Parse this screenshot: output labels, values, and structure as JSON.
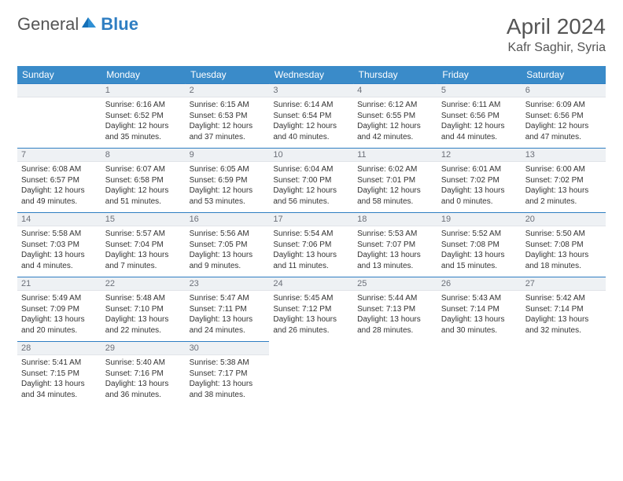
{
  "logo": {
    "text1": "General",
    "text2": "Blue"
  },
  "title": "April 2024",
  "location": "Kafr Saghir, Syria",
  "headers": [
    "Sunday",
    "Monday",
    "Tuesday",
    "Wednesday",
    "Thursday",
    "Friday",
    "Saturday"
  ],
  "colors": {
    "header_bg": "#3a8bc9",
    "header_text": "#ffffff",
    "daynum_bg": "#eef1f4",
    "border": "#2f7ec2",
    "logo_blue": "#2f7ec2"
  },
  "weeks": [
    [
      {
        "n": "",
        "sr": "",
        "ss": "",
        "dl": ""
      },
      {
        "n": "1",
        "sr": "Sunrise: 6:16 AM",
        "ss": "Sunset: 6:52 PM",
        "dl": "Daylight: 12 hours and 35 minutes."
      },
      {
        "n": "2",
        "sr": "Sunrise: 6:15 AM",
        "ss": "Sunset: 6:53 PM",
        "dl": "Daylight: 12 hours and 37 minutes."
      },
      {
        "n": "3",
        "sr": "Sunrise: 6:14 AM",
        "ss": "Sunset: 6:54 PM",
        "dl": "Daylight: 12 hours and 40 minutes."
      },
      {
        "n": "4",
        "sr": "Sunrise: 6:12 AM",
        "ss": "Sunset: 6:55 PM",
        "dl": "Daylight: 12 hours and 42 minutes."
      },
      {
        "n": "5",
        "sr": "Sunrise: 6:11 AM",
        "ss": "Sunset: 6:56 PM",
        "dl": "Daylight: 12 hours and 44 minutes."
      },
      {
        "n": "6",
        "sr": "Sunrise: 6:09 AM",
        "ss": "Sunset: 6:56 PM",
        "dl": "Daylight: 12 hours and 47 minutes."
      }
    ],
    [
      {
        "n": "7",
        "sr": "Sunrise: 6:08 AM",
        "ss": "Sunset: 6:57 PM",
        "dl": "Daylight: 12 hours and 49 minutes."
      },
      {
        "n": "8",
        "sr": "Sunrise: 6:07 AM",
        "ss": "Sunset: 6:58 PM",
        "dl": "Daylight: 12 hours and 51 minutes."
      },
      {
        "n": "9",
        "sr": "Sunrise: 6:05 AM",
        "ss": "Sunset: 6:59 PM",
        "dl": "Daylight: 12 hours and 53 minutes."
      },
      {
        "n": "10",
        "sr": "Sunrise: 6:04 AM",
        "ss": "Sunset: 7:00 PM",
        "dl": "Daylight: 12 hours and 56 minutes."
      },
      {
        "n": "11",
        "sr": "Sunrise: 6:02 AM",
        "ss": "Sunset: 7:01 PM",
        "dl": "Daylight: 12 hours and 58 minutes."
      },
      {
        "n": "12",
        "sr": "Sunrise: 6:01 AM",
        "ss": "Sunset: 7:02 PM",
        "dl": "Daylight: 13 hours and 0 minutes."
      },
      {
        "n": "13",
        "sr": "Sunrise: 6:00 AM",
        "ss": "Sunset: 7:02 PM",
        "dl": "Daylight: 13 hours and 2 minutes."
      }
    ],
    [
      {
        "n": "14",
        "sr": "Sunrise: 5:58 AM",
        "ss": "Sunset: 7:03 PM",
        "dl": "Daylight: 13 hours and 4 minutes."
      },
      {
        "n": "15",
        "sr": "Sunrise: 5:57 AM",
        "ss": "Sunset: 7:04 PM",
        "dl": "Daylight: 13 hours and 7 minutes."
      },
      {
        "n": "16",
        "sr": "Sunrise: 5:56 AM",
        "ss": "Sunset: 7:05 PM",
        "dl": "Daylight: 13 hours and 9 minutes."
      },
      {
        "n": "17",
        "sr": "Sunrise: 5:54 AM",
        "ss": "Sunset: 7:06 PM",
        "dl": "Daylight: 13 hours and 11 minutes."
      },
      {
        "n": "18",
        "sr": "Sunrise: 5:53 AM",
        "ss": "Sunset: 7:07 PM",
        "dl": "Daylight: 13 hours and 13 minutes."
      },
      {
        "n": "19",
        "sr": "Sunrise: 5:52 AM",
        "ss": "Sunset: 7:08 PM",
        "dl": "Daylight: 13 hours and 15 minutes."
      },
      {
        "n": "20",
        "sr": "Sunrise: 5:50 AM",
        "ss": "Sunset: 7:08 PM",
        "dl": "Daylight: 13 hours and 18 minutes."
      }
    ],
    [
      {
        "n": "21",
        "sr": "Sunrise: 5:49 AM",
        "ss": "Sunset: 7:09 PM",
        "dl": "Daylight: 13 hours and 20 minutes."
      },
      {
        "n": "22",
        "sr": "Sunrise: 5:48 AM",
        "ss": "Sunset: 7:10 PM",
        "dl": "Daylight: 13 hours and 22 minutes."
      },
      {
        "n": "23",
        "sr": "Sunrise: 5:47 AM",
        "ss": "Sunset: 7:11 PM",
        "dl": "Daylight: 13 hours and 24 minutes."
      },
      {
        "n": "24",
        "sr": "Sunrise: 5:45 AM",
        "ss": "Sunset: 7:12 PM",
        "dl": "Daylight: 13 hours and 26 minutes."
      },
      {
        "n": "25",
        "sr": "Sunrise: 5:44 AM",
        "ss": "Sunset: 7:13 PM",
        "dl": "Daylight: 13 hours and 28 minutes."
      },
      {
        "n": "26",
        "sr": "Sunrise: 5:43 AM",
        "ss": "Sunset: 7:14 PM",
        "dl": "Daylight: 13 hours and 30 minutes."
      },
      {
        "n": "27",
        "sr": "Sunrise: 5:42 AM",
        "ss": "Sunset: 7:14 PM",
        "dl": "Daylight: 13 hours and 32 minutes."
      }
    ],
    [
      {
        "n": "28",
        "sr": "Sunrise: 5:41 AM",
        "ss": "Sunset: 7:15 PM",
        "dl": "Daylight: 13 hours and 34 minutes."
      },
      {
        "n": "29",
        "sr": "Sunrise: 5:40 AM",
        "ss": "Sunset: 7:16 PM",
        "dl": "Daylight: 13 hours and 36 minutes."
      },
      {
        "n": "30",
        "sr": "Sunrise: 5:38 AM",
        "ss": "Sunset: 7:17 PM",
        "dl": "Daylight: 13 hours and 38 minutes."
      },
      {
        "n": "",
        "sr": "",
        "ss": "",
        "dl": ""
      },
      {
        "n": "",
        "sr": "",
        "ss": "",
        "dl": ""
      },
      {
        "n": "",
        "sr": "",
        "ss": "",
        "dl": ""
      },
      {
        "n": "",
        "sr": "",
        "ss": "",
        "dl": ""
      }
    ]
  ]
}
